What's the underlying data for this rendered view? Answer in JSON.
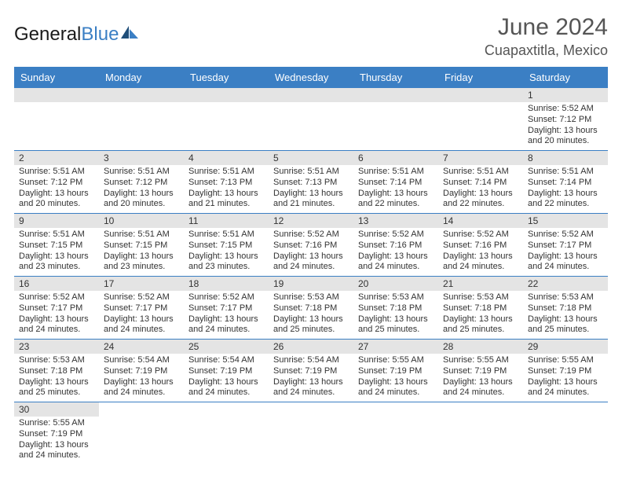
{
  "brand": {
    "part1": "General",
    "part2": "Blue"
  },
  "title": "June 2024",
  "location": "Cuapaxtitla, Mexico",
  "colors": {
    "header_bg": "#3b7fc4",
    "daynum_bg": "#e4e4e4",
    "rule": "#3b7fc4"
  },
  "weekdays": [
    "Sunday",
    "Monday",
    "Tuesday",
    "Wednesday",
    "Thursday",
    "Friday",
    "Saturday"
  ],
  "weeks": [
    [
      null,
      null,
      null,
      null,
      null,
      null,
      {
        "n": "1",
        "sr": "Sunrise: 5:52 AM",
        "ss": "Sunset: 7:12 PM",
        "dl": "Daylight: 13 hours and 20 minutes."
      }
    ],
    [
      {
        "n": "2",
        "sr": "Sunrise: 5:51 AM",
        "ss": "Sunset: 7:12 PM",
        "dl": "Daylight: 13 hours and 20 minutes."
      },
      {
        "n": "3",
        "sr": "Sunrise: 5:51 AM",
        "ss": "Sunset: 7:12 PM",
        "dl": "Daylight: 13 hours and 20 minutes."
      },
      {
        "n": "4",
        "sr": "Sunrise: 5:51 AM",
        "ss": "Sunset: 7:13 PM",
        "dl": "Daylight: 13 hours and 21 minutes."
      },
      {
        "n": "5",
        "sr": "Sunrise: 5:51 AM",
        "ss": "Sunset: 7:13 PM",
        "dl": "Daylight: 13 hours and 21 minutes."
      },
      {
        "n": "6",
        "sr": "Sunrise: 5:51 AM",
        "ss": "Sunset: 7:14 PM",
        "dl": "Daylight: 13 hours and 22 minutes."
      },
      {
        "n": "7",
        "sr": "Sunrise: 5:51 AM",
        "ss": "Sunset: 7:14 PM",
        "dl": "Daylight: 13 hours and 22 minutes."
      },
      {
        "n": "8",
        "sr": "Sunrise: 5:51 AM",
        "ss": "Sunset: 7:14 PM",
        "dl": "Daylight: 13 hours and 22 minutes."
      }
    ],
    [
      {
        "n": "9",
        "sr": "Sunrise: 5:51 AM",
        "ss": "Sunset: 7:15 PM",
        "dl": "Daylight: 13 hours and 23 minutes."
      },
      {
        "n": "10",
        "sr": "Sunrise: 5:51 AM",
        "ss": "Sunset: 7:15 PM",
        "dl": "Daylight: 13 hours and 23 minutes."
      },
      {
        "n": "11",
        "sr": "Sunrise: 5:51 AM",
        "ss": "Sunset: 7:15 PM",
        "dl": "Daylight: 13 hours and 23 minutes."
      },
      {
        "n": "12",
        "sr": "Sunrise: 5:52 AM",
        "ss": "Sunset: 7:16 PM",
        "dl": "Daylight: 13 hours and 24 minutes."
      },
      {
        "n": "13",
        "sr": "Sunrise: 5:52 AM",
        "ss": "Sunset: 7:16 PM",
        "dl": "Daylight: 13 hours and 24 minutes."
      },
      {
        "n": "14",
        "sr": "Sunrise: 5:52 AM",
        "ss": "Sunset: 7:16 PM",
        "dl": "Daylight: 13 hours and 24 minutes."
      },
      {
        "n": "15",
        "sr": "Sunrise: 5:52 AM",
        "ss": "Sunset: 7:17 PM",
        "dl": "Daylight: 13 hours and 24 minutes."
      }
    ],
    [
      {
        "n": "16",
        "sr": "Sunrise: 5:52 AM",
        "ss": "Sunset: 7:17 PM",
        "dl": "Daylight: 13 hours and 24 minutes."
      },
      {
        "n": "17",
        "sr": "Sunrise: 5:52 AM",
        "ss": "Sunset: 7:17 PM",
        "dl": "Daylight: 13 hours and 24 minutes."
      },
      {
        "n": "18",
        "sr": "Sunrise: 5:52 AM",
        "ss": "Sunset: 7:17 PM",
        "dl": "Daylight: 13 hours and 24 minutes."
      },
      {
        "n": "19",
        "sr": "Sunrise: 5:53 AM",
        "ss": "Sunset: 7:18 PM",
        "dl": "Daylight: 13 hours and 25 minutes."
      },
      {
        "n": "20",
        "sr": "Sunrise: 5:53 AM",
        "ss": "Sunset: 7:18 PM",
        "dl": "Daylight: 13 hours and 25 minutes."
      },
      {
        "n": "21",
        "sr": "Sunrise: 5:53 AM",
        "ss": "Sunset: 7:18 PM",
        "dl": "Daylight: 13 hours and 25 minutes."
      },
      {
        "n": "22",
        "sr": "Sunrise: 5:53 AM",
        "ss": "Sunset: 7:18 PM",
        "dl": "Daylight: 13 hours and 25 minutes."
      }
    ],
    [
      {
        "n": "23",
        "sr": "Sunrise: 5:53 AM",
        "ss": "Sunset: 7:18 PM",
        "dl": "Daylight: 13 hours and 25 minutes."
      },
      {
        "n": "24",
        "sr": "Sunrise: 5:54 AM",
        "ss": "Sunset: 7:19 PM",
        "dl": "Daylight: 13 hours and 24 minutes."
      },
      {
        "n": "25",
        "sr": "Sunrise: 5:54 AM",
        "ss": "Sunset: 7:19 PM",
        "dl": "Daylight: 13 hours and 24 minutes."
      },
      {
        "n": "26",
        "sr": "Sunrise: 5:54 AM",
        "ss": "Sunset: 7:19 PM",
        "dl": "Daylight: 13 hours and 24 minutes."
      },
      {
        "n": "27",
        "sr": "Sunrise: 5:55 AM",
        "ss": "Sunset: 7:19 PM",
        "dl": "Daylight: 13 hours and 24 minutes."
      },
      {
        "n": "28",
        "sr": "Sunrise: 5:55 AM",
        "ss": "Sunset: 7:19 PM",
        "dl": "Daylight: 13 hours and 24 minutes."
      },
      {
        "n": "29",
        "sr": "Sunrise: 5:55 AM",
        "ss": "Sunset: 7:19 PM",
        "dl": "Daylight: 13 hours and 24 minutes."
      }
    ],
    [
      {
        "n": "30",
        "sr": "Sunrise: 5:55 AM",
        "ss": "Sunset: 7:19 PM",
        "dl": "Daylight: 13 hours and 24 minutes."
      },
      null,
      null,
      null,
      null,
      null,
      null
    ]
  ]
}
